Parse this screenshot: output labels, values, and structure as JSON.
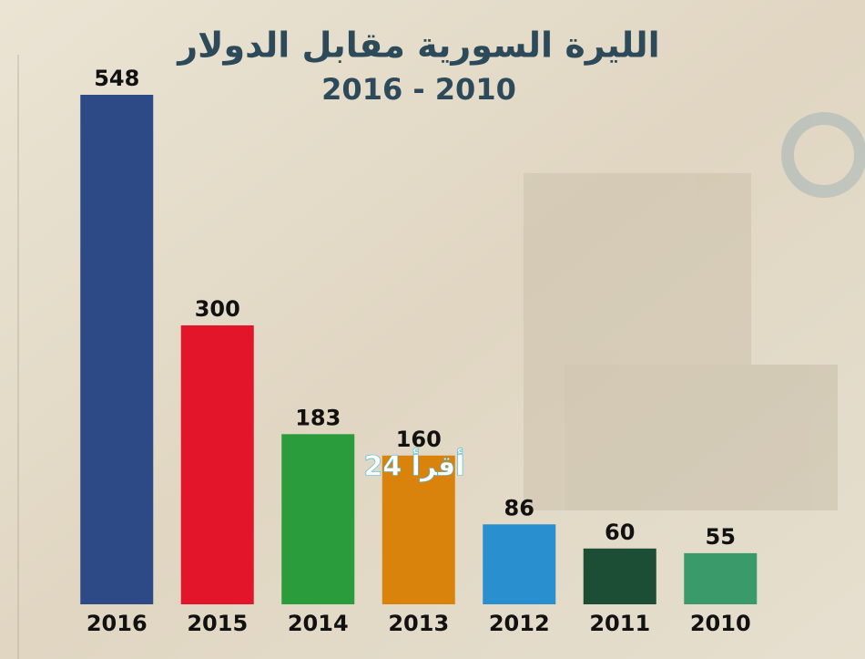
{
  "chart_data": {
    "type": "bar",
    "title": "الليرة السورية مقابل الدولار",
    "subtitle": "2016 - 2010",
    "categories": [
      "2016",
      "2015",
      "2014",
      "2013",
      "2012",
      "2011",
      "2010"
    ],
    "values": [
      548,
      300,
      183,
      160,
      86,
      60,
      55
    ],
    "colors": [
      "#2e4a86",
      "#e3152b",
      "#2a9c3c",
      "#d9820c",
      "#2a8fcf",
      "#1b4e35",
      "#3a9a6a"
    ],
    "annotations": [
      "أقرأ 24"
    ]
  }
}
